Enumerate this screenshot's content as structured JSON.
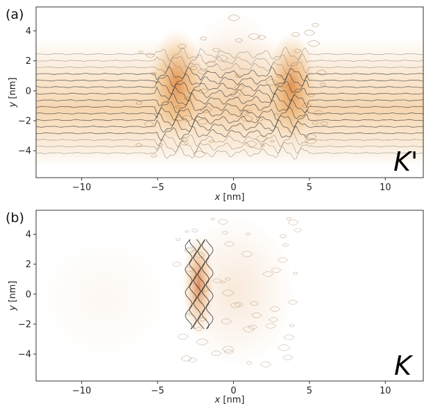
{
  "chart_data": [
    {
      "type": "heatmap",
      "panel_label": "(a)",
      "valley_label": "K'",
      "xlabel_var": "x",
      "xlabel_unit": " [nm]",
      "ylabel_var": "y",
      "ylabel_unit": " [nm]",
      "xlim": [
        -13,
        12.5
      ],
      "ylim": [
        -5.8,
        5.6
      ],
      "xticks": [
        -10,
        -5,
        0,
        5,
        10
      ],
      "yticks": [
        -4,
        -2,
        0,
        2,
        4
      ],
      "xtick_labels": [
        "−10",
        "−5",
        "0",
        "5",
        "10"
      ],
      "ytick_labels": [
        "−4",
        "−2",
        "0",
        "2",
        "4"
      ],
      "colors": {
        "low": "#ffffff",
        "mid": "#e8a54a",
        "high": "#b3360b",
        "lines": "#111111"
      },
      "grid": false
    },
    {
      "type": "heatmap",
      "panel_label": "(b)",
      "valley_label": "K",
      "xlabel_var": "x",
      "xlabel_unit": " [nm]",
      "ylabel_var": "y",
      "ylabel_unit": " [nm]",
      "xlim": [
        -13,
        12.5
      ],
      "ylim": [
        -5.8,
        5.6
      ],
      "xticks": [
        -10,
        -5,
        0,
        5,
        10
      ],
      "yticks": [
        -4,
        -2,
        0,
        2,
        4
      ],
      "xtick_labels": [
        "−10",
        "−5",
        "0",
        "5",
        "10"
      ],
      "ytick_labels": [
        "−4",
        "−2",
        "0",
        "2",
        "4"
      ],
      "colors": {
        "low": "#ffffff",
        "mid": "#e8a54a",
        "high": "#b3360b",
        "lines": "#111111"
      },
      "grid": false
    }
  ]
}
